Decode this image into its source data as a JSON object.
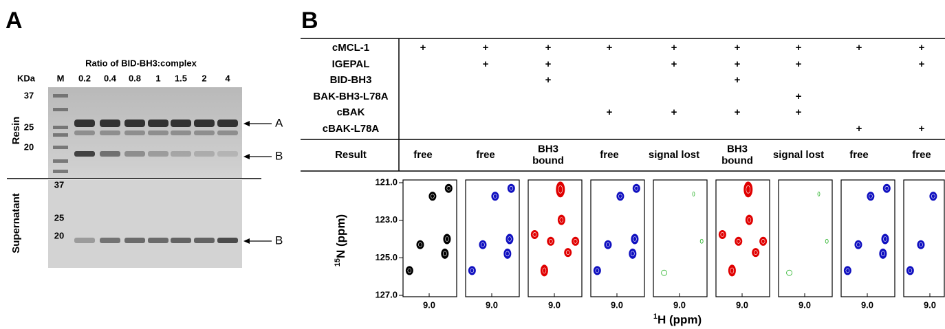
{
  "panel_a": {
    "label": "A",
    "title": "Ratio of BID-BH3:complex",
    "kda_label": "KDa",
    "lanes": [
      "M",
      "0.2",
      "0.4",
      "0.8",
      "1",
      "1.5",
      "2",
      "4"
    ],
    "resin": {
      "label": "Resin",
      "markers": [
        "37",
        "25",
        "20"
      ],
      "arrows": [
        "A",
        "B"
      ]
    },
    "supernatant": {
      "label": "Supernatant",
      "markers": [
        "37",
        "25",
        "20"
      ],
      "arrows": [
        "B"
      ]
    }
  },
  "panel_b": {
    "label": "B",
    "rows": [
      {
        "name": "cMCL-1",
        "cells": [
          "+",
          "+",
          "+",
          "+",
          "+",
          "+",
          "+",
          "+",
          "+"
        ]
      },
      {
        "name": "IGEPAL",
        "cells": [
          null,
          "+",
          "+",
          null,
          "+",
          "+",
          "+",
          null,
          "+"
        ]
      },
      {
        "name": "BID-BH3",
        "cells": [
          null,
          null,
          "+",
          null,
          null,
          "+",
          null,
          null,
          null
        ]
      },
      {
        "name": "BAK-BH3-L78A",
        "cells": [
          null,
          null,
          null,
          null,
          null,
          null,
          "+",
          null,
          null
        ]
      },
      {
        "name": "cBAK",
        "cells": [
          null,
          null,
          null,
          "+",
          "+",
          "+",
          "+",
          null,
          null
        ]
      },
      {
        "name": "cBAK-L78A",
        "cells": [
          null,
          null,
          null,
          null,
          null,
          null,
          null,
          "+",
          "+"
        ]
      }
    ],
    "result_label": "Result",
    "results": [
      [
        "free"
      ],
      [
        "free"
      ],
      [
        "BH3",
        "bound"
      ],
      [
        "free"
      ],
      [
        "signal lost"
      ],
      [
        "BH3",
        "bound"
      ],
      [
        "signal lost"
      ],
      [
        "free"
      ],
      [
        "free"
      ]
    ],
    "spectra_colors": [
      "#000000",
      "#1010c0",
      "#e00000",
      "#1010c0",
      "#20b020",
      "#e00000",
      "#20b020",
      "#1010c0",
      "#1010c0"
    ],
    "y_label": {
      "sup": "15",
      "text": "N (ppm)"
    },
    "x_label": {
      "sup": "1",
      "text": "H (ppm)"
    },
    "ylim": [
      121,
      127
    ],
    "yticks": [
      {
        "value": 121,
        "label": "121.0"
      },
      {
        "value": 123,
        "label": "123.0"
      },
      {
        "value": 125,
        "label": "125.0"
      },
      {
        "value": 127,
        "label": "127.0"
      }
    ],
    "xticks": [
      {
        "value": 9,
        "label": "9.0"
      }
    ]
  }
}
